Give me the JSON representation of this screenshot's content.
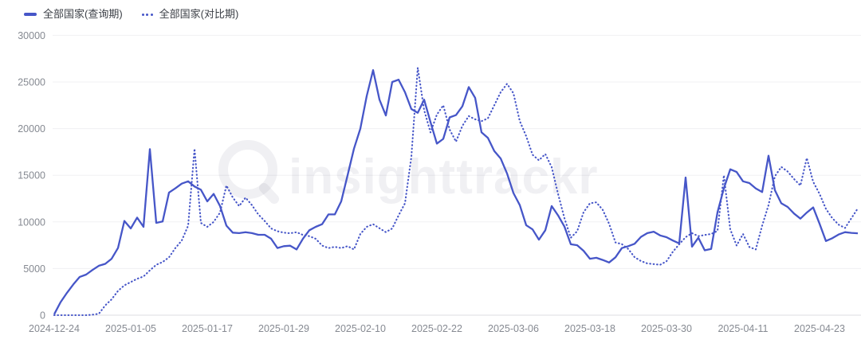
{
  "legend": [
    {
      "label": "全部国家(查询期)",
      "style": "solid"
    },
    {
      "label": "全部国家(对比期)",
      "style": "dotted"
    }
  ],
  "watermark": {
    "text": "insighttrackr",
    "logo": "magnifier-q-logo"
  },
  "colors": {
    "line": "#4656c8",
    "grid": "#f0f0f3",
    "baseline": "#dcdce1",
    "axis_text": "#868a92",
    "legend_text": "#3b3f46",
    "watermark": "rgba(40,46,80,0.07)",
    "background": "#ffffff"
  },
  "chart_data": {
    "type": "line",
    "title": "",
    "xlabel": "",
    "ylabel": "",
    "ylim": [
      0,
      30000
    ],
    "y_ticks": [
      0,
      5000,
      10000,
      15000,
      20000,
      25000,
      30000
    ],
    "grid": "horizontal",
    "legend_position": "top-left",
    "x_tick_labels": [
      "2024-12-24",
      "2025-01-05",
      "2025-01-17",
      "2025-01-29",
      "2025-02-10",
      "2025-02-22",
      "2025-03-06",
      "2025-03-18",
      "2025-03-30",
      "2025-04-11",
      "2025-04-23"
    ],
    "x_tick_interval_days": 12,
    "x": [
      "2024-12-24",
      "2024-12-25",
      "2024-12-26",
      "2024-12-27",
      "2024-12-28",
      "2024-12-29",
      "2024-12-30",
      "2024-12-31",
      "2025-01-01",
      "2025-01-02",
      "2025-01-03",
      "2025-01-04",
      "2025-01-05",
      "2025-01-06",
      "2025-01-07",
      "2025-01-08",
      "2025-01-09",
      "2025-01-10",
      "2025-01-11",
      "2025-01-12",
      "2025-01-13",
      "2025-01-14",
      "2025-01-15",
      "2025-01-16",
      "2025-01-17",
      "2025-01-18",
      "2025-01-19",
      "2025-01-20",
      "2025-01-21",
      "2025-01-22",
      "2025-01-23",
      "2025-01-24",
      "2025-01-25",
      "2025-01-26",
      "2025-01-27",
      "2025-01-28",
      "2025-01-29",
      "2025-01-30",
      "2025-01-31",
      "2025-02-01",
      "2025-02-02",
      "2025-02-03",
      "2025-02-04",
      "2025-02-05",
      "2025-02-06",
      "2025-02-07",
      "2025-02-08",
      "2025-02-09",
      "2025-02-10",
      "2025-02-11",
      "2025-02-12",
      "2025-02-13",
      "2025-02-14",
      "2025-02-15",
      "2025-02-16",
      "2025-02-17",
      "2025-02-18",
      "2025-02-19",
      "2025-02-20",
      "2025-02-21",
      "2025-02-22",
      "2025-02-23",
      "2025-02-24",
      "2025-02-25",
      "2025-02-26",
      "2025-02-27",
      "2025-02-28",
      "2025-03-01",
      "2025-03-02",
      "2025-03-03",
      "2025-03-04",
      "2025-03-05",
      "2025-03-06",
      "2025-03-07",
      "2025-03-08",
      "2025-03-09",
      "2025-03-10",
      "2025-03-11",
      "2025-03-12",
      "2025-03-13",
      "2025-03-14",
      "2025-03-15",
      "2025-03-16",
      "2025-03-17",
      "2025-03-18",
      "2025-03-19",
      "2025-03-20",
      "2025-03-21",
      "2025-03-22",
      "2025-03-23",
      "2025-03-24",
      "2025-03-25",
      "2025-03-26",
      "2025-03-27",
      "2025-03-28",
      "2025-03-29",
      "2025-03-30",
      "2025-03-31",
      "2025-04-01",
      "2025-04-02",
      "2025-04-03",
      "2025-04-04",
      "2025-04-05",
      "2025-04-06",
      "2025-04-07",
      "2025-04-08",
      "2025-04-09",
      "2025-04-10",
      "2025-04-11",
      "2025-04-12",
      "2025-04-13",
      "2025-04-14",
      "2025-04-15",
      "2025-04-16",
      "2025-04-17",
      "2025-04-18",
      "2025-04-19",
      "2025-04-20",
      "2025-04-21",
      "2025-04-22",
      "2025-04-23",
      "2025-04-24",
      "2025-04-25",
      "2025-04-26",
      "2025-04-27",
      "2025-04-28",
      "2025-04-29"
    ],
    "series": [
      {
        "name": "全部国家(查询期)",
        "style": "solid",
        "values": [
          100,
          1400,
          2400,
          3300,
          4100,
          4350,
          4850,
          5300,
          5500,
          6050,
          7200,
          10100,
          9300,
          10460,
          9470,
          17800,
          9900,
          10050,
          13150,
          13600,
          14100,
          14350,
          13800,
          13450,
          12200,
          13000,
          11700,
          9600,
          8850,
          8800,
          8900,
          8800,
          8620,
          8620,
          8200,
          7200,
          7400,
          7450,
          7050,
          8200,
          9100,
          9470,
          9750,
          10800,
          10800,
          12200,
          15000,
          17850,
          20000,
          23500,
          26270,
          23110,
          21410,
          25000,
          25250,
          23900,
          22100,
          21700,
          23110,
          20700,
          18400,
          18900,
          21200,
          21450,
          22400,
          24450,
          23300,
          19600,
          19000,
          17600,
          16800,
          15200,
          13100,
          11800,
          9650,
          9200,
          8100,
          9100,
          11700,
          10700,
          9500,
          7600,
          7500,
          6900,
          6050,
          6150,
          5920,
          5650,
          6200,
          7190,
          7400,
          7650,
          8400,
          8800,
          8950,
          8550,
          8360,
          8000,
          7700,
          14760,
          7350,
          8300,
          6950,
          7100,
          11030,
          13600,
          15640,
          15350,
          14350,
          14160,
          13590,
          13200,
          17100,
          13400,
          12000,
          11600,
          10900,
          10350,
          11000,
          11550,
          9800,
          7950,
          8250,
          8650,
          8900,
          8820,
          8780
        ]
      },
      {
        "name": "全部国家(对比期)",
        "style": "dotted",
        "values": [
          0,
          0,
          0,
          0,
          0,
          0,
          50,
          150,
          1050,
          1700,
          2600,
          3200,
          3550,
          3900,
          4150,
          4800,
          5400,
          5700,
          6200,
          7200,
          8000,
          9600,
          17850,
          9890,
          9470,
          10000,
          11000,
          13900,
          12620,
          11700,
          12600,
          11800,
          10800,
          10100,
          9300,
          9000,
          8850,
          8780,
          8900,
          8600,
          8470,
          8190,
          7470,
          7190,
          7330,
          7190,
          7400,
          7050,
          8700,
          9470,
          9750,
          9320,
          8900,
          9300,
          10700,
          12000,
          17000,
          26530,
          22000,
          19600,
          21500,
          22500,
          19900,
          18600,
          20300,
          21350,
          21000,
          20800,
          21100,
          22500,
          23900,
          24800,
          23800,
          20800,
          19200,
          17200,
          16600,
          17280,
          15870,
          13000,
          10400,
          8300,
          9000,
          11030,
          12000,
          12100,
          11300,
          9800,
          7800,
          7620,
          7100,
          6220,
          5800,
          5550,
          5480,
          5400,
          5780,
          6800,
          7600,
          8360,
          8800,
          8470,
          8600,
          8700,
          9040,
          15000,
          9200,
          7470,
          8700,
          7300,
          7050,
          9600,
          11800,
          14900,
          15900,
          15400,
          14600,
          13900,
          16850,
          14300,
          13000,
          11400,
          10400,
          9700,
          9350,
          10400,
          11450
        ]
      }
    ]
  }
}
